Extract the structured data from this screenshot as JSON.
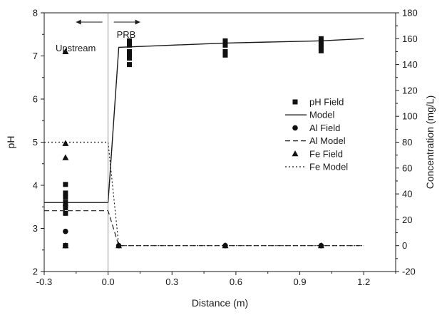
{
  "chart_data": {
    "type": "scatter",
    "xlabel": "Distance (m)",
    "ylabel": "pH",
    "y2label": "Concentration (mg/L)",
    "xlim": [
      -0.3,
      1.35
    ],
    "ylim": [
      2,
      8
    ],
    "y2lim": [
      -20,
      180
    ],
    "xticks": [
      "-0.3",
      "0.0",
      "0.3",
      "0.6",
      "0.9",
      "1.2"
    ],
    "yticks": [
      "2",
      "3",
      "4",
      "5",
      "6",
      "7",
      "8"
    ],
    "y2ticks": [
      "-20",
      "0",
      "20",
      "40",
      "60",
      "80",
      "100",
      "120",
      "140",
      "160",
      "180"
    ],
    "annotations": {
      "upstream": "Upstream",
      "prb": "PRB",
      "upstream_arrow": "left",
      "prb_arrow": "right",
      "boundary_x": 0.0
    },
    "legend_position": "center-right",
    "series": [
      {
        "name": "pH Field",
        "axis": "left",
        "marker": "square",
        "x": [
          -0.2,
          -0.2,
          -0.2,
          -0.2,
          -0.2,
          -0.2,
          -0.2,
          -0.2,
          0.1,
          0.1,
          0.1,
          0.1,
          0.1,
          0.1,
          0.55,
          0.55,
          0.55,
          0.55,
          1.0,
          1.0,
          1.0,
          1.0,
          1.0
        ],
        "y": [
          4.02,
          3.82,
          3.72,
          3.6,
          3.48,
          3.35,
          2.6,
          2.6,
          7.35,
          7.25,
          7.1,
          7.0,
          6.95,
          6.8,
          7.35,
          7.25,
          7.1,
          7.02,
          7.4,
          7.33,
          7.26,
          7.2,
          7.12
        ]
      },
      {
        "name": "Model",
        "axis": "left",
        "style": "solid",
        "x": [
          -0.3,
          0.0,
          0.05,
          0.55,
          1.0,
          1.2
        ],
        "y": [
          3.6,
          3.6,
          7.2,
          7.3,
          7.35,
          7.4
        ]
      },
      {
        "name": "Al Field",
        "axis": "right",
        "marker": "circle",
        "x": [
          -0.2,
          -0.2,
          -0.2,
          0.05,
          0.55,
          1.0
        ],
        "y": [
          31,
          11,
          0,
          0,
          0,
          0
        ]
      },
      {
        "name": "Al Model",
        "axis": "right",
        "style": "dashed",
        "x": [
          -0.3,
          0.0,
          0.05,
          1.2
        ],
        "y": [
          27,
          27,
          0,
          0
        ]
      },
      {
        "name": "Fe Field",
        "axis": "right",
        "marker": "triangle",
        "x": [
          -0.2,
          -0.2,
          -0.2,
          -0.2,
          0.05,
          0.55,
          1.0
        ],
        "y": [
          150,
          79,
          68,
          0,
          0,
          0,
          0
        ]
      },
      {
        "name": "Fe Model",
        "axis": "right",
        "style": "dotted",
        "x": [
          -0.3,
          0.0,
          0.05,
          1.2
        ],
        "y": [
          80,
          80,
          0,
          0
        ]
      }
    ]
  }
}
